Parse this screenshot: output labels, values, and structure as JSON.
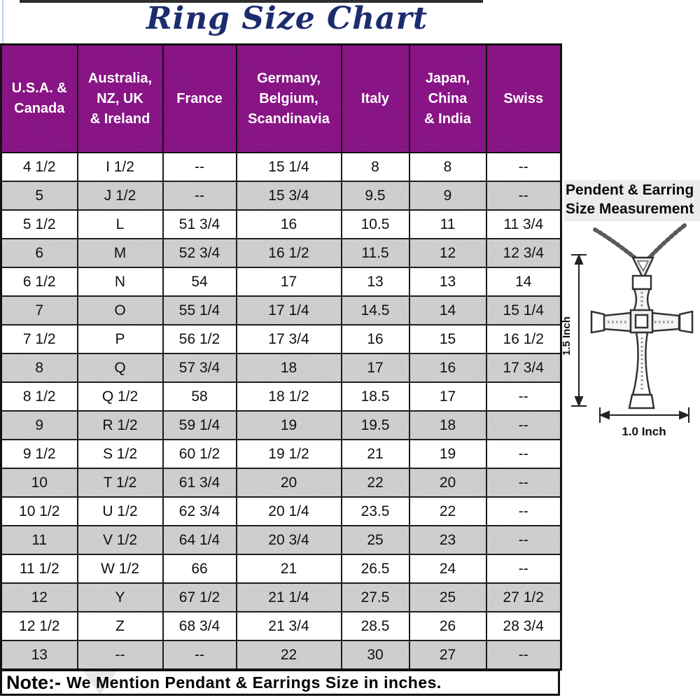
{
  "title": "Ring Size Chart",
  "chart_data": {
    "type": "table",
    "title": "Ring Size Chart",
    "columns": [
      "U.S.A. &\nCanada",
      "Australia,\nNZ, UK\n& Ireland",
      "France",
      "Germany,\nBelgium,\nScandinavia",
      "Italy",
      "Japan,\nChina\n& India",
      "Swiss"
    ],
    "rows": [
      [
        "4 1/2",
        "I 1/2",
        "--",
        "15 1/4",
        "8",
        "8",
        "--"
      ],
      [
        "5",
        "J 1/2",
        "--",
        "15 3/4",
        "9.5",
        "9",
        "--"
      ],
      [
        "5 1/2",
        "L",
        "51 3/4",
        "16",
        "10.5",
        "11",
        "11 3/4"
      ],
      [
        "6",
        "M",
        "52 3/4",
        "16 1/2",
        "11.5",
        "12",
        "12 3/4"
      ],
      [
        "6 1/2",
        "N",
        "54",
        "17",
        "13",
        "13",
        "14"
      ],
      [
        "7",
        "O",
        "55 1/4",
        "17 1/4",
        "14.5",
        "14",
        "15 1/4"
      ],
      [
        "7 1/2",
        "P",
        "56 1/2",
        "17 3/4",
        "16",
        "15",
        "16 1/2"
      ],
      [
        "8",
        "Q",
        "57 3/4",
        "18",
        "17",
        "16",
        "17 3/4"
      ],
      [
        "8 1/2",
        "Q 1/2",
        "58",
        "18 1/2",
        "18.5",
        "17",
        "--"
      ],
      [
        "9",
        "R 1/2",
        "59 1/4",
        "19",
        "19.5",
        "18",
        "--"
      ],
      [
        "9 1/2",
        "S 1/2",
        "60 1/2",
        "19 1/2",
        "21",
        "19",
        "--"
      ],
      [
        "10",
        "T 1/2",
        "61 3/4",
        "20",
        "22",
        "20",
        "--"
      ],
      [
        "10 1/2",
        "U 1/2",
        "62 3/4",
        "20 1/4",
        "23.5",
        "22",
        "--"
      ],
      [
        "11",
        "V 1/2",
        "64 1/4",
        "20 3/4",
        "25",
        "23",
        "--"
      ],
      [
        "11 1/2",
        "W 1/2",
        "66",
        "21",
        "26.5",
        "24",
        "--"
      ],
      [
        "12",
        "Y",
        "67 1/2",
        "21 1/4",
        "27.5",
        "25",
        "27 1/2"
      ],
      [
        "12 1/2",
        "Z",
        "68 3/4",
        "21 3/4",
        "28.5",
        "26",
        "28 3/4"
      ],
      [
        "13",
        "--",
        "--",
        "22",
        "30",
        "27",
        "--"
      ]
    ],
    "layout_hints": {
      "row_shading": "alternating white / gray starting white",
      "header_bg": "#8b1588",
      "header_text_color": "#ffffff"
    }
  },
  "note": {
    "label": "Note:-",
    "text": "We Mention Pendant & Earrings Size in inches."
  },
  "side_panel": {
    "heading": "Pendent & Earring\nSize Measurement",
    "illustration": "cross-pendant-necklace",
    "vertical_dimension": "1.5 Inch",
    "horizontal_dimension": "1.0 Inch"
  },
  "colors": {
    "header_purple": "#8b1588",
    "title_navy": "#1d2c6e",
    "row_gray": "#cacaca"
  }
}
